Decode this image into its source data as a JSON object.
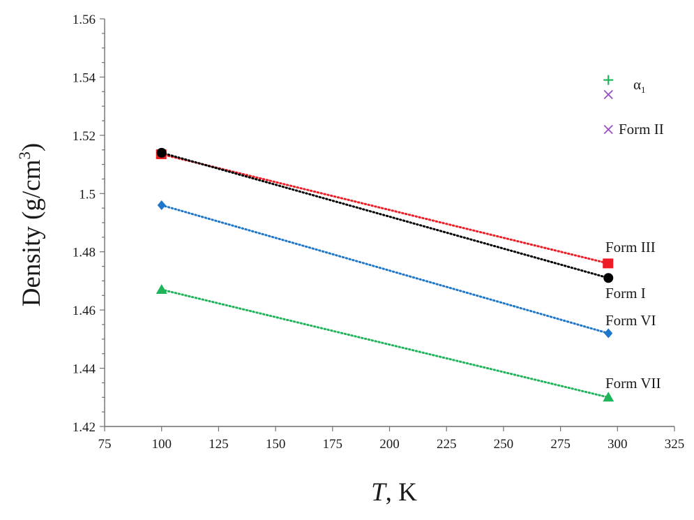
{
  "chart_data": {
    "type": "scatter",
    "title": "",
    "ylabel": "Density (g/cm³)",
    "ylabel_parts": {
      "main": "Density  (g/cm",
      "sup": "3",
      "end": ")"
    },
    "xlabel": "T, K",
    "xlabel_parts": {
      "italic": "T",
      "rest": ", K"
    },
    "xlim": [
      75,
      325
    ],
    "ylim": [
      1.42,
      1.56
    ],
    "x_ticks": [
      75,
      100,
      125,
      150,
      175,
      200,
      225,
      250,
      275,
      300,
      325
    ],
    "y_ticks": [
      1.42,
      1.44,
      1.46,
      1.48,
      1.5,
      1.52,
      1.54,
      1.56
    ],
    "y_tick_labels": [
      "1.42",
      "1.44",
      "1.46",
      "1.48",
      "1.5",
      "1.52",
      "1.54",
      "1.56"
    ],
    "grid": false,
    "legend": "none",
    "series": [
      {
        "name": "Form III",
        "color": "#ee1c24",
        "marker": "square",
        "line": "dotted",
        "x": [
          100,
          296
        ],
        "y": [
          1.5135,
          1.476
        ]
      },
      {
        "name": "Form I",
        "color": "#000000",
        "marker": "circle",
        "line": "dotted",
        "x": [
          100,
          296
        ],
        "y": [
          1.514,
          1.471
        ]
      },
      {
        "name": "Form VI",
        "color": "#1f77c9",
        "marker": "diamond",
        "line": "dotted",
        "x": [
          100,
          296
        ],
        "y": [
          1.496,
          1.452
        ]
      },
      {
        "name": "Form VII",
        "color": "#1fb35a",
        "marker": "triangle",
        "line": "dotted",
        "x": [
          100,
          296
        ],
        "y": [
          1.467,
          1.43
        ]
      },
      {
        "name": "α1",
        "label_main": "α",
        "label_sub": "1",
        "color": "#1fb35a",
        "marker": "plus",
        "line": "none",
        "x": [
          296
        ],
        "y": [
          1.539
        ]
      },
      {
        "name": "Form II",
        "color": "#9b4fc4",
        "marker": "x",
        "line": "none",
        "x": [
          296,
          296
        ],
        "y": [
          1.522,
          1.534
        ]
      }
    ]
  }
}
